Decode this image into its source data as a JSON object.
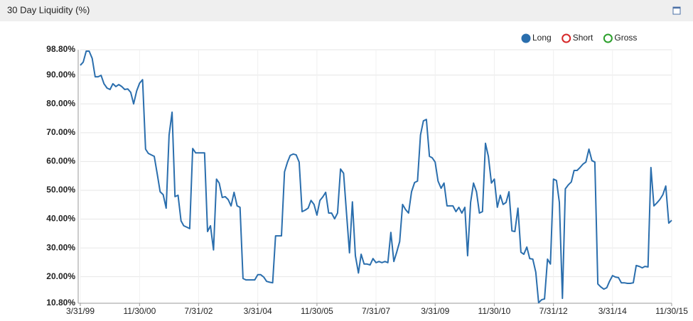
{
  "panel_title": "30 Day Liquidity (%)",
  "chart_data": {
    "type": "line",
    "x": [
      "3/31/99",
      "4/30/99",
      "5/31/99",
      "6/30/99",
      "7/31/99",
      "8/31/99",
      "9/30/99",
      "10/31/99",
      "11/30/99",
      "12/31/99",
      "1/31/00",
      "2/29/00",
      "3/31/00",
      "4/30/00",
      "5/31/00",
      "6/30/00",
      "7/31/00",
      "8/31/00",
      "9/30/00",
      "10/31/00",
      "11/30/00",
      "12/31/00",
      "1/31/01",
      "2/28/01",
      "3/31/01",
      "4/30/01",
      "5/31/01",
      "6/30/01",
      "7/31/01",
      "8/31/01",
      "9/30/01",
      "10/31/01",
      "11/30/01",
      "12/31/01",
      "1/31/02",
      "2/28/02",
      "3/31/02",
      "4/30/02",
      "5/31/02",
      "6/30/02",
      "7/31/02",
      "8/31/02",
      "9/30/02",
      "10/31/02",
      "11/30/02",
      "12/31/02",
      "1/31/03",
      "2/28/03",
      "3/31/03",
      "4/30/03",
      "5/31/03",
      "6/30/03",
      "7/31/03",
      "8/31/03",
      "9/30/03",
      "10/31/03",
      "11/30/03",
      "12/31/03",
      "1/31/04",
      "2/29/04",
      "3/31/04",
      "4/30/04",
      "5/31/04",
      "6/30/04",
      "7/31/04",
      "8/31/04",
      "9/30/04",
      "10/31/04",
      "11/30/04",
      "12/31/04",
      "1/31/05",
      "2/28/05",
      "3/31/05",
      "4/30/05",
      "5/31/05",
      "6/30/05",
      "7/31/05",
      "8/31/05",
      "9/30/05",
      "10/31/05",
      "11/30/05",
      "12/31/05",
      "1/31/06",
      "2/28/06",
      "3/31/06",
      "4/30/06",
      "5/31/06",
      "6/30/06",
      "7/31/06",
      "8/31/06",
      "9/30/06",
      "10/31/06",
      "11/30/06",
      "12/31/06",
      "1/31/07",
      "2/28/07",
      "3/31/07",
      "4/30/07",
      "5/31/07",
      "6/30/07",
      "7/31/07",
      "8/31/07",
      "9/30/07",
      "10/31/07",
      "11/30/07",
      "12/31/07",
      "1/31/08",
      "2/29/08",
      "3/31/08",
      "4/30/08",
      "5/31/08",
      "6/30/08",
      "7/31/08",
      "8/31/08",
      "9/30/08",
      "10/31/08",
      "11/30/08",
      "12/31/08",
      "1/31/09",
      "2/28/09",
      "3/31/09",
      "4/30/09",
      "5/31/09",
      "6/30/09",
      "7/31/09",
      "8/31/09",
      "9/30/09",
      "10/31/09",
      "11/30/09",
      "12/31/09",
      "1/31/10",
      "2/28/10",
      "3/31/10",
      "4/30/10",
      "5/31/10",
      "6/30/10",
      "7/31/10",
      "8/31/10",
      "9/30/10",
      "10/31/10",
      "11/30/10",
      "12/31/10",
      "1/31/11",
      "2/28/11",
      "3/31/11",
      "4/30/11",
      "5/31/11",
      "6/30/11",
      "7/31/11",
      "8/31/11",
      "9/30/11",
      "10/31/11",
      "11/30/11",
      "12/31/11",
      "1/31/12",
      "2/29/12",
      "3/31/12",
      "4/30/12",
      "5/31/12",
      "6/30/12",
      "7/31/12",
      "8/31/12",
      "9/30/12",
      "10/31/12",
      "11/30/12",
      "12/31/12",
      "1/31/13",
      "2/28/13",
      "3/31/13",
      "4/30/13",
      "5/31/13",
      "6/30/13",
      "7/31/13",
      "8/31/13",
      "9/30/13",
      "10/31/13",
      "11/30/13",
      "12/31/13",
      "1/31/14",
      "2/28/14",
      "3/31/14",
      "4/30/14",
      "5/31/14",
      "6/30/14",
      "7/31/14",
      "8/31/14",
      "9/30/14",
      "10/31/14",
      "11/30/14",
      "12/31/14",
      "1/31/15",
      "2/28/15",
      "3/31/15",
      "4/30/15",
      "5/31/15",
      "6/30/15",
      "7/31/15",
      "8/31/15",
      "9/30/15",
      "10/31/15",
      "11/30/15"
    ],
    "series": [
      {
        "name": "Long",
        "color": "#2a6ead",
        "visible": true,
        "values": [
          93.4,
          94.5,
          98.3,
          98.3,
          95.8,
          89.4,
          89.4,
          89.9,
          87,
          85.5,
          85,
          87,
          86,
          86.7,
          86,
          85,
          85.2,
          84,
          80,
          84.5,
          87.2,
          88.4,
          64.3,
          62.8,
          62.3,
          61.8,
          55.7,
          49.5,
          48.5,
          43.8,
          69.2,
          77.1,
          47.8,
          48.3,
          39.4,
          37.7,
          37.2,
          36.7,
          64.5,
          63,
          63,
          63,
          63,
          35.7,
          37.7,
          29.3,
          53.9,
          52.5,
          47.5,
          47.8,
          46.8,
          44.6,
          49.3,
          44.6,
          44.1,
          19.4,
          18.9,
          18.9,
          18.9,
          18.9,
          20.7,
          20.7,
          19.9,
          18.4,
          18.1,
          17.9,
          34.2,
          34.2,
          34.2,
          56.4,
          59.8,
          62.1,
          62.6,
          62.3,
          59.8,
          42.6,
          43.1,
          43.8,
          46.5,
          45.1,
          41.4,
          46.5,
          47.8,
          49.3,
          42.1,
          42.1,
          40.1,
          42.1,
          57.4,
          55.9,
          42.1,
          28.3,
          46,
          27.3,
          21.3,
          27.8,
          24.4,
          24.4,
          24.1,
          26.3,
          24.9,
          25.3,
          24.9,
          25.3,
          24.9,
          35.4,
          25.3,
          28.5,
          32.2,
          45.1,
          43.3,
          42.1,
          49.5,
          52.7,
          53.2,
          69.2,
          74.1,
          74.6,
          61.8,
          61.3,
          59.8,
          53.2,
          50.7,
          52.5,
          44.6,
          44.6,
          44.6,
          42.6,
          44.1,
          42.1,
          44.1,
          27.3,
          45.8,
          52.5,
          49.5,
          42.1,
          42.6,
          66.3,
          61.8,
          52.5,
          53.9,
          44.1,
          48.3,
          45.1,
          45.8,
          49.5,
          35.9,
          35.7,
          43.8,
          28.5,
          27.8,
          30.3,
          26.3,
          26.1,
          21.6,
          11,
          12,
          12.3,
          26.1,
          24.4,
          53.9,
          53.4,
          45.8,
          12.5,
          50.5,
          51.9,
          52.9,
          56.9,
          56.9,
          57.9,
          59.1,
          59.8,
          64.3,
          60.3,
          59.8,
          17.5,
          16.5,
          15.7,
          16.2,
          18.4,
          20.4,
          19.9,
          19.7,
          17.9,
          17.9,
          17.7,
          17.7,
          17.9,
          23.9,
          23.6,
          23.1,
          23.6,
          23.4,
          57.9,
          44.6,
          45.6,
          46.8,
          48.5,
          51.5,
          38.6,
          39.6
        ]
      },
      {
        "name": "Short",
        "color": "#d62728",
        "visible": false
      },
      {
        "name": "Gross",
        "color": "#2ca02c",
        "visible": false
      }
    ],
    "xlim": [
      "3/31/99",
      "11/30/15"
    ],
    "xticks": [
      "3/31/99",
      "11/30/00",
      "7/31/02",
      "3/31/04",
      "11/30/05",
      "7/31/07",
      "3/31/09",
      "11/30/10",
      "7/31/12",
      "3/31/14",
      "11/30/15"
    ],
    "ylim": [
      10.8,
      98.8
    ],
    "yticks": [
      {
        "value": 10.8,
        "label": "10.80%"
      },
      {
        "value": 20,
        "label": "20.00%"
      },
      {
        "value": 30,
        "label": "30.00%"
      },
      {
        "value": 40,
        "label": "40.00%"
      },
      {
        "value": 50,
        "label": "50.00%"
      },
      {
        "value": 60,
        "label": "60.00%"
      },
      {
        "value": 70,
        "label": "70.00%"
      },
      {
        "value": 80,
        "label": "80.00%"
      },
      {
        "value": 90,
        "label": "90.00%"
      },
      {
        "value": 98.8,
        "label": "98.80%"
      }
    ],
    "grid": true,
    "legend": "top-right"
  }
}
